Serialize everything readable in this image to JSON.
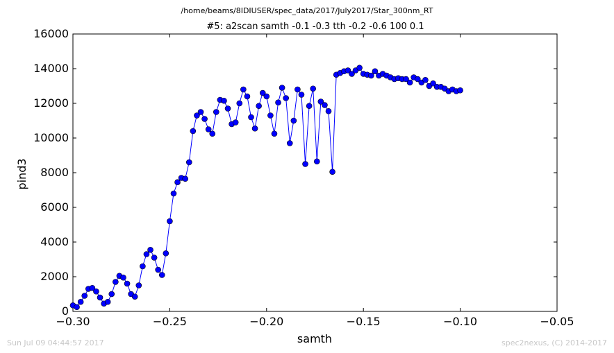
{
  "figure": {
    "suptitle": "/home/beams/8IDIUSER/spec_data/2017/July2017/Star_300nm_RT",
    "footer_left": "Sun Jul 09 04:44:57 2017",
    "footer_right": "spec2nexus, (C) 2014-2017"
  },
  "chart_data": {
    "type": "line",
    "title": "#5: a2scan  samth -0.1 -0.3  tth -0.2 -0.6  100 0.1",
    "xlabel": "samth",
    "ylabel": "pind3",
    "xlim": [
      -0.3,
      -0.05
    ],
    "ylim": [
      0,
      16000
    ],
    "xticks": [
      -0.3,
      -0.25,
      -0.2,
      -0.15,
      -0.1,
      -0.05
    ],
    "xtick_labels": [
      "−0.30",
      "−0.25",
      "−0.20",
      "−0.15",
      "−0.10",
      "−0.05"
    ],
    "yticks": [
      0,
      2000,
      4000,
      6000,
      8000,
      10000,
      12000,
      14000,
      16000
    ],
    "ytick_labels": [
      "0",
      "2000",
      "4000",
      "6000",
      "8000",
      "10000",
      "12000",
      "14000",
      "16000"
    ],
    "grid": false,
    "marker": "circle",
    "color": "#0000ff",
    "series": [
      {
        "x": [
          -0.3,
          -0.298,
          -0.296,
          -0.294,
          -0.292,
          -0.29,
          -0.288,
          -0.286,
          -0.284,
          -0.282,
          -0.28,
          -0.278,
          -0.276,
          -0.274,
          -0.272,
          -0.27,
          -0.268,
          -0.266,
          -0.264,
          -0.262,
          -0.26,
          -0.258,
          -0.256,
          -0.254,
          -0.252,
          -0.25,
          -0.248,
          -0.246,
          -0.244,
          -0.242,
          -0.24,
          -0.238,
          -0.236,
          -0.234,
          -0.232,
          -0.23,
          -0.228,
          -0.226,
          -0.224,
          -0.222,
          -0.22,
          -0.218,
          -0.216,
          -0.214,
          -0.212,
          -0.21,
          -0.208,
          -0.206,
          -0.204,
          -0.202,
          -0.2,
          -0.198,
          -0.196,
          -0.194,
          -0.192,
          -0.19,
          -0.188,
          -0.186,
          -0.184,
          -0.182,
          -0.18,
          -0.178,
          -0.176,
          -0.174,
          -0.172,
          -0.17,
          -0.168,
          -0.166,
          -0.164,
          -0.162,
          -0.16,
          -0.158,
          -0.156,
          -0.154,
          -0.152,
          -0.15,
          -0.148,
          -0.146,
          -0.144,
          -0.142,
          -0.14,
          -0.138,
          -0.136,
          -0.134,
          -0.132,
          -0.13,
          -0.128,
          -0.126,
          -0.124,
          -0.122,
          -0.12,
          -0.118,
          -0.116,
          -0.114,
          -0.112,
          -0.11,
          -0.108,
          -0.106,
          -0.104,
          -0.102,
          -0.1
        ],
        "y": [
          350,
          250,
          550,
          900,
          1300,
          1350,
          1150,
          800,
          450,
          550,
          1000,
          1700,
          2050,
          1950,
          1600,
          1000,
          850,
          1500,
          2600,
          3300,
          3550,
          3100,
          2400,
          2100,
          3350,
          5200,
          6800,
          7450,
          7700,
          7650,
          8600,
          10400,
          11300,
          11500,
          11100,
          10500,
          10250,
          11500,
          12200,
          12150,
          11700,
          10800,
          10900,
          12000,
          12800,
          12400,
          11200,
          10550,
          11850,
          12600,
          12400,
          11300,
          10250,
          12050,
          12900,
          12300,
          9700,
          11000,
          12800,
          12500,
          8500,
          11850,
          12850,
          8650,
          12100,
          11900,
          11550,
          8050,
          13650,
          13750,
          13850,
          13900,
          13700,
          13900,
          14050,
          13700,
          13650,
          13600,
          13850,
          13600,
          13700,
          13600,
          13500,
          13400,
          13450,
          13400,
          13400,
          13200,
          13500,
          13400,
          13200,
          13350,
          13000,
          13150,
          12950,
          12950,
          12850,
          12700,
          12800,
          12700,
          12750
        ]
      }
    ]
  }
}
